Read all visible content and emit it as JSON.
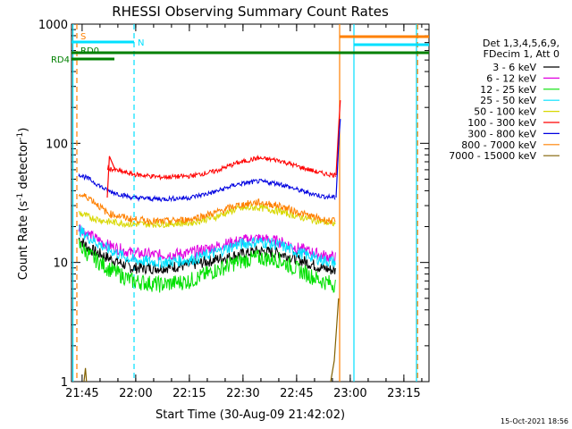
{
  "chart_data": {
    "type": "line",
    "title": "RHESSI Observing Summary Count Rates",
    "xlabel": "Start Time (30-Aug-09 21:42:02)",
    "ylabel_prefix": "Count Rate (s",
    "ylabel_sup": "-1",
    "ylabel_mid": " detector",
    "ylabel_sup2": "-1",
    "ylabel_suffix": ")",
    "x_range_minutes": [
      0,
      100
    ],
    "ylim": [
      1,
      1000
    ],
    "yscale": "log",
    "x_ticks": [
      "21:45",
      "22:00",
      "22:15",
      "22:30",
      "22:45",
      "23:00",
      "23:15"
    ],
    "y_ticks": [
      "1",
      "10",
      "100",
      "1000"
    ],
    "legend_header": [
      "Det 1,3,4,5,6,9,",
      "FDecim 1, Att 0"
    ],
    "legend_position": "right",
    "series": [
      {
        "name": "3 - 6 keV",
        "color": "#000000",
        "values": [
          16,
          13,
          11,
          9,
          9,
          9.5,
          10.5,
          11.5,
          12.5,
          12,
          10.5,
          9,
          8.5
        ]
      },
      {
        "name": "6 - 12 keV",
        "color": "#e000e0",
        "values": [
          20,
          17,
          14,
          12,
          11.5,
          12,
          13.5,
          15,
          16,
          15,
          13,
          11.5,
          11
        ]
      },
      {
        "name": "12 - 25 keV",
        "color": "#00e000",
        "values": [
          14,
          11.5,
          9,
          7,
          6.5,
          7,
          8.5,
          10,
          11,
          10.5,
          8.5,
          7,
          6.5
        ]
      },
      {
        "name": "25 - 50 keV",
        "color": "#00e0ff",
        "values": [
          19,
          16,
          13,
          10.5,
          10,
          10.5,
          12,
          14,
          15,
          14,
          12,
          10.5,
          10
        ]
      },
      {
        "name": "50 - 100 keV",
        "color": "#d8d800",
        "values": [
          26,
          24,
          22,
          21,
          21,
          21.5,
          24,
          28,
          29,
          27,
          24,
          22,
          21
        ]
      },
      {
        "name": "100 - 300 keV",
        "color": "#ff0000",
        "values": [
          null,
          null,
          62,
          55,
          52,
          53,
          58,
          68,
          75,
          72,
          63,
          56,
          54
        ]
      },
      {
        "name": "300 - 800 keV",
        "color": "#0000e0",
        "values": [
          55,
          50,
          40,
          35,
          34,
          35,
          39,
          45,
          48,
          46,
          40,
          36,
          35
        ]
      },
      {
        "name": "800 - 7000 keV",
        "color": "#ff8000",
        "values": [
          37,
          35,
          26,
          23,
          22,
          23,
          26,
          30,
          32,
          30,
          26,
          23,
          22
        ]
      },
      {
        "name": "7000 - 15000 keV",
        "color": "#806000",
        "values": [
          null,
          null,
          null,
          null,
          null,
          null,
          null,
          null,
          null,
          null,
          null,
          null,
          null
        ]
      }
    ],
    "series_x_minutes": [
      2,
      5,
      10,
      17,
      25,
      33,
      40,
      46,
      52,
      58,
      64,
      70,
      74
    ],
    "flags": [
      {
        "label": "S",
        "color": "#ff8000"
      },
      {
        "label": "N",
        "color": "#00e0ff"
      },
      {
        "label": "RD0",
        "color": "#008000"
      },
      {
        "label": "RD4",
        "color": "#008000"
      }
    ],
    "grid": false
  },
  "footer": {
    "date": "15-Oct-2021 18:56"
  }
}
